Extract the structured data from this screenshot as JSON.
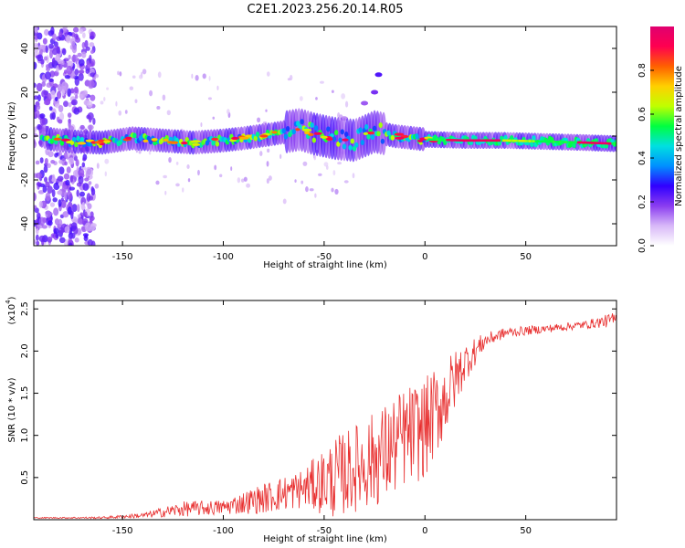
{
  "title": "C2E1.2023.256.20.14.R05",
  "chart_data": [
    {
      "type": "heatmap",
      "xlabel": "Height of straight line (km)",
      "ylabel": "Frequency (Hz)",
      "xlim": [
        -194,
        95
      ],
      "ylim": [
        -50,
        50
      ],
      "xticks": [
        -150,
        -100,
        -50,
        0,
        50
      ],
      "yticks": [
        -40,
        -20,
        0,
        20,
        40
      ],
      "colorbar": {
        "label": "Normalized spectral amplitude",
        "range": [
          0,
          1
        ],
        "ticks": [
          0.0,
          0.2,
          0.4,
          0.6,
          0.8
        ],
        "colormap": [
          "#ffffff",
          "#d8b8f8",
          "#8a3cf0",
          "#3000ff",
          "#0090ff",
          "#00e0e0",
          "#00ff40",
          "#c0ff00",
          "#ffd000",
          "#ff6000",
          "#ff0050",
          "#e00070"
        ]
      },
      "ridge": [
        {
          "x": -194,
          "f": 1.5
        },
        {
          "x": -185,
          "f": -1.5
        },
        {
          "x": -175,
          "f": -2.5
        },
        {
          "x": -160,
          "f": -3
        },
        {
          "x": -145,
          "f": -1
        },
        {
          "x": -130,
          "f": -2
        },
        {
          "x": -115,
          "f": -3
        },
        {
          "x": -100,
          "f": -2
        },
        {
          "x": -90,
          "f": -1
        },
        {
          "x": -75,
          "f": 1
        },
        {
          "x": -62,
          "f": 3
        },
        {
          "x": -55,
          "f": 1
        },
        {
          "x": -45,
          "f": -1
        },
        {
          "x": -35,
          "f": -2
        },
        {
          "x": -25,
          "f": 2
        },
        {
          "x": -15,
          "f": 0
        },
        {
          "x": 0,
          "f": -1.5
        },
        {
          "x": 20,
          "f": -2
        },
        {
          "x": 40,
          "f": -2
        },
        {
          "x": 60,
          "f": -2.5
        },
        {
          "x": 80,
          "f": -3
        },
        {
          "x": 95,
          "f": -3.5
        }
      ],
      "branch": [
        {
          "x": -40,
          "f": 8
        },
        {
          "x": -30,
          "f": 15
        },
        {
          "x": -25,
          "f": 20
        },
        {
          "x": -23,
          "f": 28
        }
      ]
    },
    {
      "type": "line",
      "xlabel": "Height of straight line (km)",
      "ylabel": "SNR (10 * v/v)",
      "ylabel_multiplier": "(x10",
      "ylabel_exponent": "4",
      "xlim": [
        -194,
        95
      ],
      "ylim": [
        0,
        2.6
      ],
      "xticks": [
        -150,
        -100,
        -50,
        0,
        50
      ],
      "yticks": [
        0.5,
        1.0,
        1.5,
        2.0,
        2.5
      ],
      "color": "#e83030",
      "envelope": [
        {
          "x": -194,
          "base": 0.02,
          "amp": 0.01
        },
        {
          "x": -160,
          "base": 0.02,
          "amp": 0.02
        },
        {
          "x": -140,
          "base": 0.04,
          "amp": 0.05
        },
        {
          "x": -120,
          "base": 0.1,
          "amp": 0.15
        },
        {
          "x": -100,
          "base": 0.12,
          "amp": 0.15
        },
        {
          "x": -80,
          "base": 0.2,
          "amp": 0.3
        },
        {
          "x": -60,
          "base": 0.3,
          "amp": 0.4
        },
        {
          "x": -45,
          "base": 0.35,
          "amp": 0.8
        },
        {
          "x": -30,
          "base": 0.5,
          "amp": 0.9
        },
        {
          "x": -20,
          "base": 0.6,
          "amp": 1.0
        },
        {
          "x": -10,
          "base": 0.8,
          "amp": 1.0
        },
        {
          "x": 0,
          "base": 0.9,
          "amp": 1.0
        },
        {
          "x": 10,
          "base": 1.3,
          "amp": 0.8
        },
        {
          "x": 20,
          "base": 1.8,
          "amp": 0.4
        },
        {
          "x": 30,
          "base": 2.1,
          "amp": 0.15
        },
        {
          "x": 40,
          "base": 2.2,
          "amp": 0.1
        },
        {
          "x": 60,
          "base": 2.25,
          "amp": 0.08
        },
        {
          "x": 80,
          "base": 2.3,
          "amp": 0.08
        },
        {
          "x": 95,
          "base": 2.35,
          "amp": 0.15
        }
      ]
    }
  ]
}
